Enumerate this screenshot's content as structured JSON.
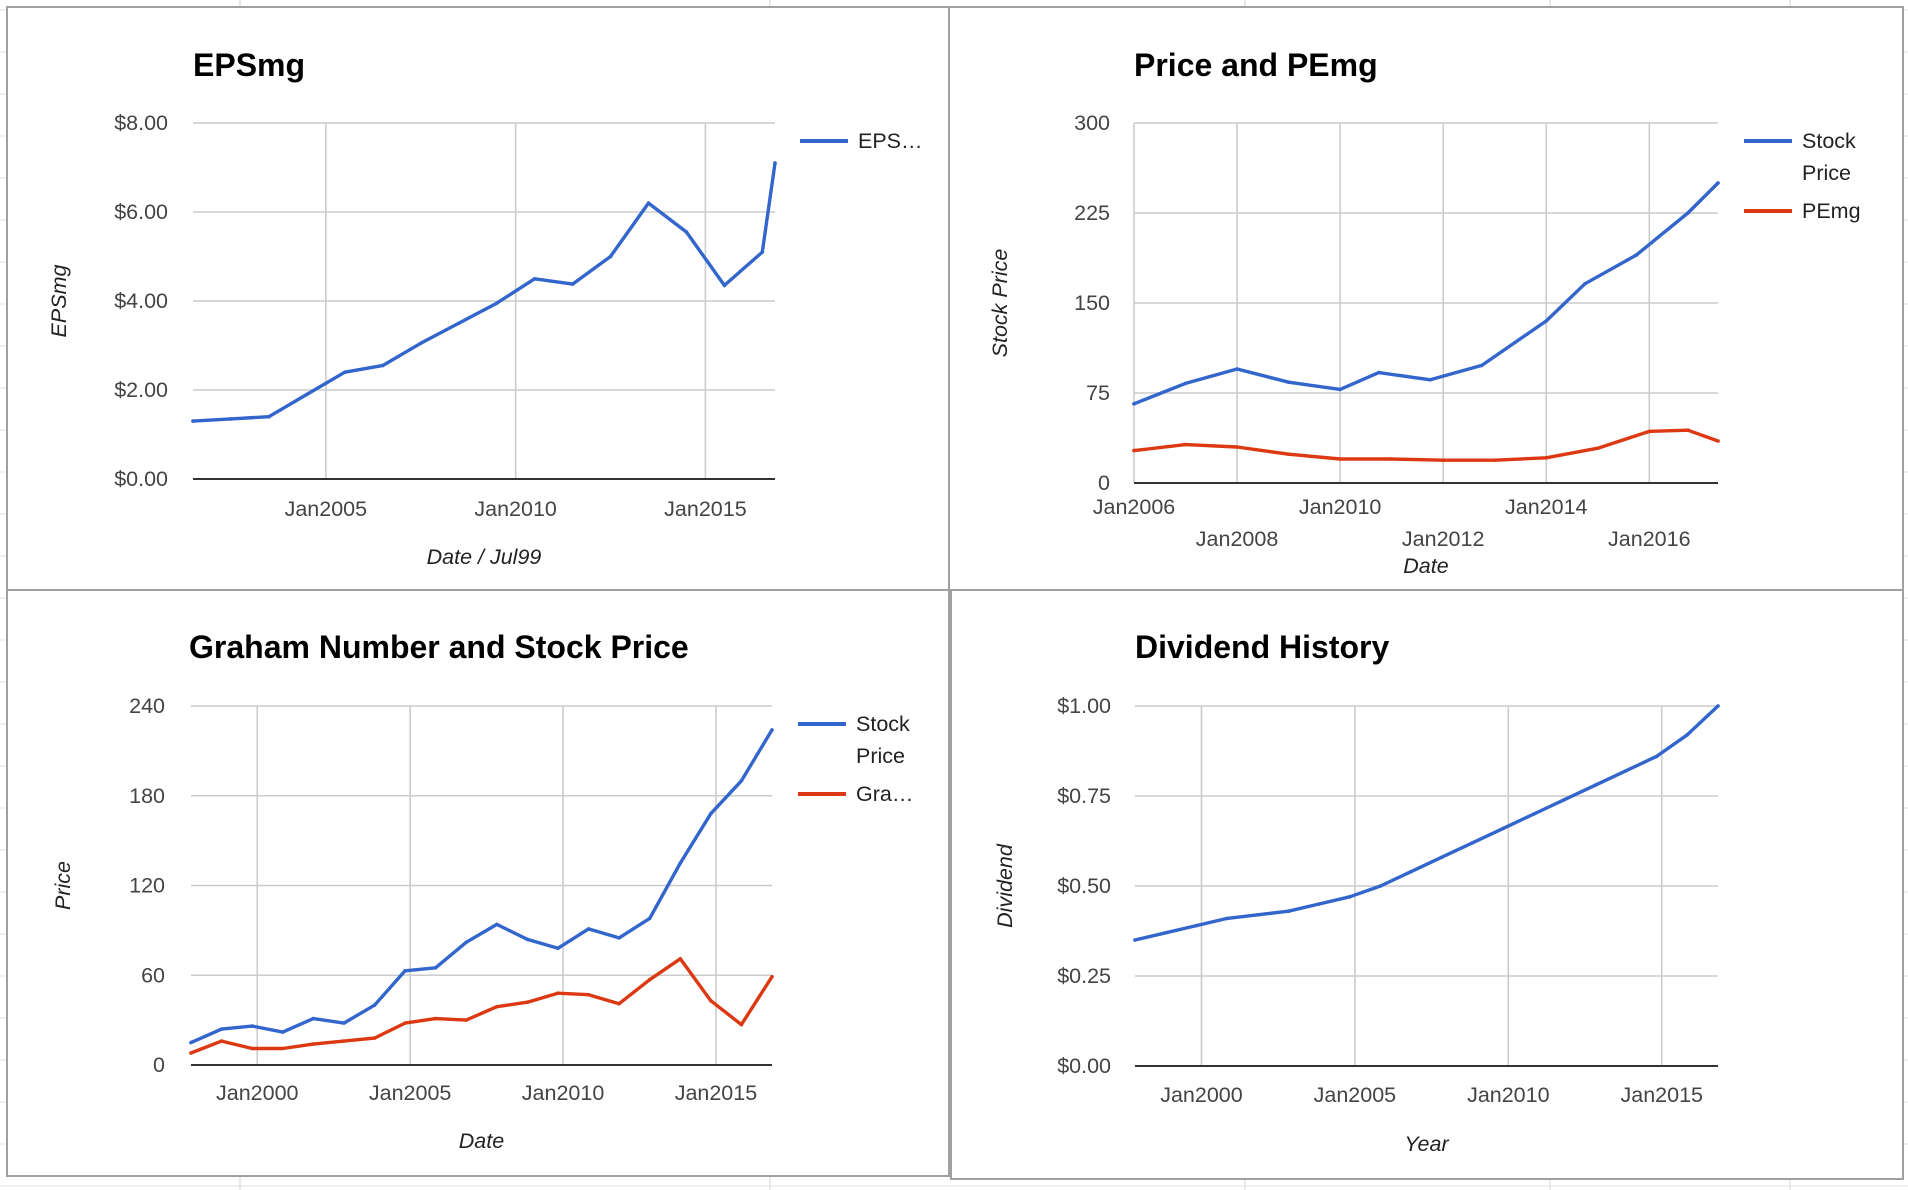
{
  "colors": {
    "stock_price": "#3366cc",
    "secondary": "#dc3912",
    "grid": "#cccccc",
    "sheet_grid": "#e2e2e2"
  },
  "chart_data": [
    {
      "id": "eps",
      "type": "line",
      "title": "EPSmg",
      "xlabel": "Date / Jul99",
      "ylabel": "EPSmg",
      "xlim": [
        "2001-07",
        "2016-11"
      ],
      "ylim": [
        0,
        8
      ],
      "y_ticks": [
        0,
        2,
        4,
        6,
        8
      ],
      "y_tick_labels": [
        "$0.00",
        "$2.00",
        "$4.00",
        "$6.00",
        "$8.00"
      ],
      "x_ticks": [
        "2005-01",
        "2010-01",
        "2015-01"
      ],
      "x_tick_labels": [
        "Jan2005",
        "Jan2010",
        "Jan2015"
      ],
      "grid": true,
      "legend_position": "right",
      "series": [
        {
          "name": "EPS…",
          "color": "#3366cc",
          "x": [
            "2001-07",
            "2002-07",
            "2003-07",
            "2004-07",
            "2005-07",
            "2006-07",
            "2007-07",
            "2008-07",
            "2009-07",
            "2010-07",
            "2011-07",
            "2012-07",
            "2013-07",
            "2014-07",
            "2015-07",
            "2016-07",
            "2016-11"
          ],
          "y": [
            1.3,
            1.35,
            1.4,
            1.9,
            2.4,
            2.55,
            3.05,
            3.5,
            3.95,
            4.5,
            4.38,
            5.0,
            6.2,
            5.55,
            4.35,
            5.1,
            7.1
          ]
        }
      ]
    },
    {
      "id": "price-pemg",
      "type": "line",
      "title": "Price and PEmg",
      "xlabel": "Date",
      "ylabel": "Stock Price",
      "xlim": [
        "2006-01",
        "2017-05"
      ],
      "ylim": [
        0,
        300
      ],
      "y_ticks": [
        0,
        75,
        150,
        225,
        300
      ],
      "y_tick_labels": [
        "0",
        "75",
        "150",
        "225",
        "300"
      ],
      "x_ticks": [
        "2006-01",
        "2008-01",
        "2010-01",
        "2012-01",
        "2014-01",
        "2016-01"
      ],
      "x_tick_labels": [
        "Jan2006",
        "Jan2008",
        "Jan2010",
        "Jan2012",
        "Jan2014",
        "Jan2016"
      ],
      "grid": true,
      "legend_position": "right",
      "series": [
        {
          "name": "Stock Price",
          "color": "#3366cc",
          "x": [
            "2006-01",
            "2007-01",
            "2008-01",
            "2009-01",
            "2010-01",
            "2010-10",
            "2011-10",
            "2012-10",
            "2014-01",
            "2014-10",
            "2015-10",
            "2016-10",
            "2017-05"
          ],
          "y": [
            66,
            83,
            95,
            84,
            78,
            92,
            86,
            98,
            135,
            166,
            190,
            225,
            250
          ]
        },
        {
          "name": "PEmg",
          "color": "#dc3912",
          "x": [
            "2006-01",
            "2007-01",
            "2008-01",
            "2009-01",
            "2010-01",
            "2011-01",
            "2012-01",
            "2013-01",
            "2014-01",
            "2015-01",
            "2016-01",
            "2016-10",
            "2017-05"
          ],
          "y": [
            27,
            32,
            30,
            24,
            20,
            20,
            19,
            19,
            21,
            29,
            43,
            44,
            35
          ]
        }
      ]
    },
    {
      "id": "graham",
      "type": "line",
      "title": "Graham Number and Stock Price",
      "xlabel": "Date",
      "ylabel": "Price",
      "xlim": [
        "1997-11",
        "2016-11"
      ],
      "ylim": [
        0,
        240
      ],
      "y_ticks": [
        0,
        60,
        120,
        180,
        240
      ],
      "y_tick_labels": [
        "0",
        "60",
        "120",
        "180",
        "240"
      ],
      "x_ticks": [
        "2000-01",
        "2005-01",
        "2010-01",
        "2015-01"
      ],
      "x_tick_labels": [
        "Jan2000",
        "Jan2005",
        "Jan2010",
        "Jan2015"
      ],
      "grid": true,
      "legend_position": "right",
      "series": [
        {
          "name": "Stock Price",
          "color": "#3366cc",
          "x": [
            "1997-11",
            "1998-11",
            "1999-11",
            "2000-11",
            "2001-11",
            "2002-11",
            "2003-11",
            "2004-11",
            "2005-11",
            "2006-11",
            "2007-11",
            "2008-11",
            "2009-11",
            "2010-11",
            "2011-11",
            "2012-11",
            "2013-11",
            "2014-11",
            "2015-11",
            "2016-11"
          ],
          "y": [
            15,
            24,
            26,
            22,
            31,
            28,
            40,
            63,
            65,
            82,
            94,
            84,
            78,
            91,
            85,
            98,
            135,
            168,
            190,
            224
          ]
        },
        {
          "name": "Gra…",
          "color": "#dc3912",
          "x": [
            "1997-11",
            "1998-11",
            "1999-11",
            "2000-11",
            "2001-11",
            "2002-11",
            "2003-11",
            "2004-11",
            "2005-11",
            "2006-11",
            "2007-11",
            "2008-11",
            "2009-11",
            "2010-11",
            "2011-11",
            "2012-11",
            "2013-11",
            "2014-11",
            "2015-11",
            "2016-11"
          ],
          "y": [
            8,
            16,
            11,
            11,
            14,
            16,
            18,
            28,
            31,
            30,
            39,
            42,
            48,
            47,
            41,
            57,
            71,
            43,
            27,
            59
          ]
        }
      ]
    },
    {
      "id": "dividend",
      "type": "line",
      "title": "Dividend History",
      "xlabel": "Year",
      "ylabel": "Dividend",
      "xlim": [
        "1997-11",
        "2016-11"
      ],
      "ylim": [
        0,
        1
      ],
      "y_ticks": [
        0,
        0.25,
        0.5,
        0.75,
        1
      ],
      "y_tick_labels": [
        "$0.00",
        "$0.25",
        "$0.50",
        "$0.75",
        "$1.00"
      ],
      "x_ticks": [
        "2000-01",
        "2005-01",
        "2010-01",
        "2015-01"
      ],
      "x_tick_labels": [
        "Jan2000",
        "Jan2005",
        "Jan2010",
        "Jan2015"
      ],
      "grid": true,
      "legend_position": "none",
      "series": [
        {
          "name": "",
          "color": "#3366cc",
          "x": [
            "1997-11",
            "1998-11",
            "1999-11",
            "2000-11",
            "2001-11",
            "2002-11",
            "2003-11",
            "2004-11",
            "2005-11",
            "2006-11",
            "2007-11",
            "2008-11",
            "2009-11",
            "2010-11",
            "2011-11",
            "2012-11",
            "2013-11",
            "2014-11",
            "2015-11",
            "2016-11"
          ],
          "y": [
            0.35,
            0.37,
            0.39,
            0.41,
            0.42,
            0.43,
            0.45,
            0.47,
            0.5,
            0.54,
            0.58,
            0.62,
            0.66,
            0.7,
            0.74,
            0.78,
            0.82,
            0.86,
            0.92,
            1.0
          ]
        }
      ]
    }
  ]
}
